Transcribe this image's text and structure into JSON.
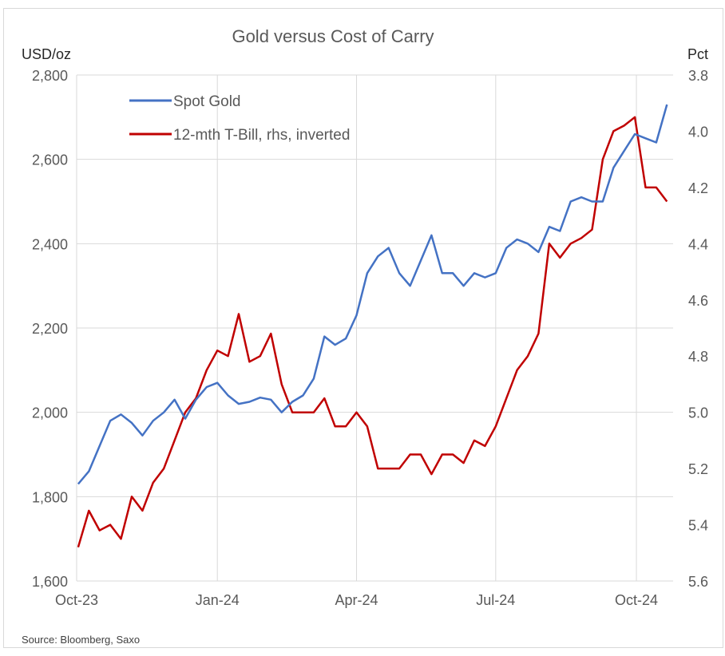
{
  "chart_data": {
    "type": "line",
    "title": "Gold versus Cost of Carry",
    "ylabel_left": "USD/oz",
    "ylabel_right": "Pct",
    "source": "Source: Bloomberg, Saxo",
    "x_ticks": [
      "Oct-23",
      "Jan-24",
      "Apr-24",
      "Jul-24",
      "Oct-24"
    ],
    "x_tick_dates": [
      "2023-10-01",
      "2024-01-01",
      "2024-04-01",
      "2024-07-01",
      "2024-10-01"
    ],
    "xlim": [
      "2023-10-01",
      "2024-10-25"
    ],
    "ylim_left": [
      1600,
      2800
    ],
    "yticks_left": [
      "1,600",
      "1,800",
      "2,000",
      "2,200",
      "2,400",
      "2,600",
      "2,800"
    ],
    "ylim_right": [
      5.6,
      3.8
    ],
    "right_axis_inverted": true,
    "yticks_right": [
      "5.6",
      "5.4",
      "5.2",
      "5.0",
      "4.8",
      "4.6",
      "4.4",
      "4.2",
      "4.0",
      "3.8"
    ],
    "grid": true,
    "legend_position": "top-left",
    "series": [
      {
        "name": "Spot Gold",
        "axis": "left",
        "color": "#4472C4",
        "dates": [
          "2023-10-02",
          "2023-10-09",
          "2023-10-16",
          "2023-10-23",
          "2023-10-30",
          "2023-11-06",
          "2023-11-13",
          "2023-11-20",
          "2023-11-27",
          "2023-12-04",
          "2023-12-11",
          "2023-12-18",
          "2023-12-25",
          "2024-01-01",
          "2024-01-08",
          "2024-01-15",
          "2024-01-22",
          "2024-01-29",
          "2024-02-05",
          "2024-02-12",
          "2024-02-19",
          "2024-02-26",
          "2024-03-04",
          "2024-03-11",
          "2024-03-18",
          "2024-03-25",
          "2024-04-01",
          "2024-04-08",
          "2024-04-15",
          "2024-04-22",
          "2024-04-29",
          "2024-05-06",
          "2024-05-13",
          "2024-05-20",
          "2024-05-27",
          "2024-06-03",
          "2024-06-10",
          "2024-06-17",
          "2024-06-24",
          "2024-07-01",
          "2024-07-08",
          "2024-07-15",
          "2024-07-22",
          "2024-07-29",
          "2024-08-05",
          "2024-08-12",
          "2024-08-19",
          "2024-08-26",
          "2024-09-02",
          "2024-09-09",
          "2024-09-16",
          "2024-09-23",
          "2024-09-30",
          "2024-10-07",
          "2024-10-14",
          "2024-10-21"
        ],
        "values": [
          1830,
          1860,
          1920,
          1980,
          1995,
          1975,
          1945,
          1980,
          2000,
          2030,
          1985,
          2030,
          2060,
          2070,
          2040,
          2020,
          2025,
          2035,
          2030,
          2000,
          2025,
          2040,
          2080,
          2180,
          2160,
          2175,
          2230,
          2330,
          2370,
          2390,
          2330,
          2300,
          2360,
          2420,
          2330,
          2330,
          2300,
          2330,
          2320,
          2330,
          2390,
          2410,
          2400,
          2380,
          2440,
          2430,
          2500,
          2510,
          2500,
          2500,
          2580,
          2620,
          2660,
          2650,
          2640,
          2730
        ]
      },
      {
        "name": "12-mth T-Bill, rhs, inverted",
        "axis": "right",
        "color": "#C00000",
        "dates": [
          "2023-10-02",
          "2023-10-09",
          "2023-10-16",
          "2023-10-23",
          "2023-10-30",
          "2023-11-06",
          "2023-11-13",
          "2023-11-20",
          "2023-11-27",
          "2023-12-04",
          "2023-12-11",
          "2023-12-18",
          "2023-12-25",
          "2024-01-01",
          "2024-01-08",
          "2024-01-15",
          "2024-01-22",
          "2024-01-29",
          "2024-02-05",
          "2024-02-12",
          "2024-02-19",
          "2024-02-26",
          "2024-03-04",
          "2024-03-11",
          "2024-03-18",
          "2024-03-25",
          "2024-04-01",
          "2024-04-08",
          "2024-04-15",
          "2024-04-22",
          "2024-04-29",
          "2024-05-06",
          "2024-05-13",
          "2024-05-20",
          "2024-05-27",
          "2024-06-03",
          "2024-06-10",
          "2024-06-17",
          "2024-06-24",
          "2024-07-01",
          "2024-07-08",
          "2024-07-15",
          "2024-07-22",
          "2024-07-29",
          "2024-08-05",
          "2024-08-12",
          "2024-08-19",
          "2024-08-26",
          "2024-09-02",
          "2024-09-09",
          "2024-09-16",
          "2024-09-23",
          "2024-09-30",
          "2024-10-07",
          "2024-10-14",
          "2024-10-21"
        ],
        "values": [
          5.48,
          5.35,
          5.42,
          5.4,
          5.45,
          5.3,
          5.35,
          5.25,
          5.2,
          5.1,
          5.0,
          4.95,
          4.85,
          4.78,
          4.8,
          4.65,
          4.82,
          4.8,
          4.72,
          4.9,
          5.0,
          5.0,
          5.0,
          4.95,
          5.05,
          5.05,
          5.0,
          5.05,
          5.2,
          5.2,
          5.2,
          5.15,
          5.15,
          5.22,
          5.15,
          5.15,
          5.18,
          5.1,
          5.12,
          5.05,
          4.95,
          4.85,
          4.8,
          4.72,
          4.4,
          4.45,
          4.4,
          4.38,
          4.35,
          4.1,
          4.0,
          3.98,
          3.95,
          4.2,
          4.2,
          4.25
        ]
      }
    ]
  }
}
